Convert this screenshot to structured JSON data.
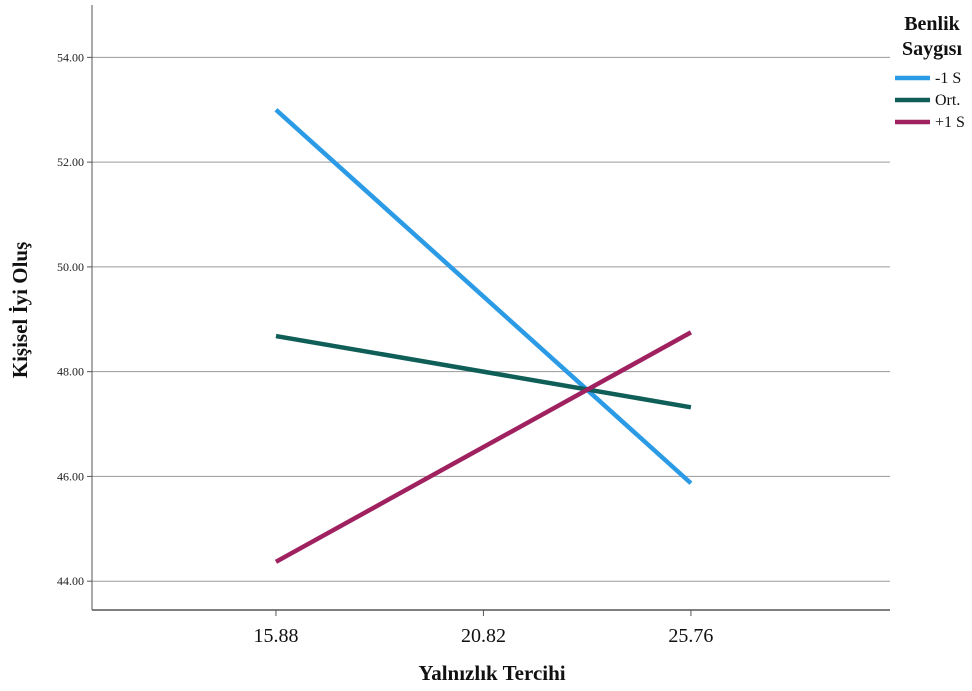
{
  "chart_data": {
    "type": "line",
    "xlabel": "Yalnızlık Tercihi",
    "ylabel": "Kişisel İyi Oluş",
    "x": [
      15.88,
      20.82,
      25.76
    ],
    "x_tick_labels": [
      "15.88",
      "20.82",
      "25.76"
    ],
    "xlim": [
      11.5,
      30.5
    ],
    "ylim": [
      43.45,
      55.0
    ],
    "y_ticks": [
      44,
      46,
      48,
      50,
      52,
      54
    ],
    "y_tick_labels": [
      "44.00",
      "46.00",
      "48.00",
      "50.00",
      "52.00",
      "54.00"
    ],
    "grid": "horizontal",
    "legend": {
      "title_line1": "Benlik",
      "title_line2": "Saygısı",
      "placement": "right"
    },
    "series": [
      {
        "name": "-1 S",
        "color": "#2c9be6",
        "values": [
          53.0,
          null,
          45.87
        ]
      },
      {
        "name": "Ort.",
        "color": "#0f5e58",
        "values": [
          48.68,
          null,
          47.32
        ]
      },
      {
        "name": "+1 S",
        "color": "#a0215f",
        "values": [
          44.37,
          null,
          48.75
        ]
      }
    ]
  }
}
